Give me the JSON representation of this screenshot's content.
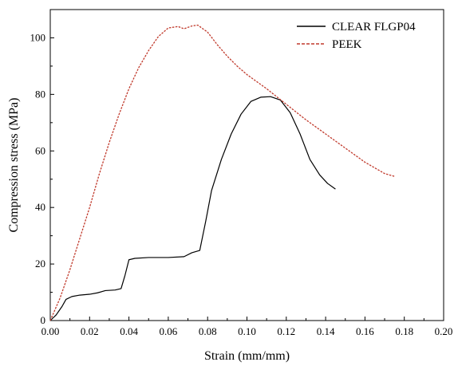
{
  "chart_data": {
    "type": "line",
    "title": "",
    "xlabel": "Strain (mm/mm)",
    "ylabel": "Compression stress (MPa)",
    "xlim": [
      0.0,
      0.2
    ],
    "ylim": [
      0,
      110
    ],
    "x_ticks": [
      "0.00",
      "0.02",
      "0.04",
      "0.06",
      "0.08",
      "0.10",
      "0.12",
      "0.14",
      "0.16",
      "0.18",
      "0.20"
    ],
    "y_ticks": [
      "0",
      "20",
      "40",
      "60",
      "80",
      "100"
    ],
    "grid": false,
    "legend_position": "top-right",
    "series": [
      {
        "name": "CLEAR FLGP04",
        "color": "#000000",
        "style": "solid",
        "points": [
          [
            0.0,
            0.0
          ],
          [
            0.003,
            2.0
          ],
          [
            0.006,
            5.0
          ],
          [
            0.008,
            7.5
          ],
          [
            0.011,
            8.5
          ],
          [
            0.015,
            9.0
          ],
          [
            0.02,
            9.3
          ],
          [
            0.024,
            9.8
          ],
          [
            0.028,
            10.6
          ],
          [
            0.033,
            10.8
          ],
          [
            0.036,
            11.3
          ],
          [
            0.038,
            16.0
          ],
          [
            0.04,
            21.5
          ],
          [
            0.043,
            22.0
          ],
          [
            0.05,
            22.3
          ],
          [
            0.06,
            22.3
          ],
          [
            0.068,
            22.6
          ],
          [
            0.072,
            24.0
          ],
          [
            0.076,
            24.8
          ],
          [
            0.079,
            35.0
          ],
          [
            0.082,
            46.0
          ],
          [
            0.087,
            57.0
          ],
          [
            0.092,
            66.0
          ],
          [
            0.097,
            73.0
          ],
          [
            0.102,
            77.5
          ],
          [
            0.107,
            79.0
          ],
          [
            0.112,
            79.2
          ],
          [
            0.117,
            78.0
          ],
          [
            0.122,
            73.5
          ],
          [
            0.127,
            66.0
          ],
          [
            0.132,
            57.0
          ],
          [
            0.137,
            51.5
          ],
          [
            0.141,
            48.5
          ],
          [
            0.145,
            46.5
          ]
        ]
      },
      {
        "name": "PEEK",
        "color": "#c0392b",
        "style": "dashed",
        "points": [
          [
            0.0,
            0.0
          ],
          [
            0.005,
            8.0
          ],
          [
            0.01,
            18.0
          ],
          [
            0.015,
            29.0
          ],
          [
            0.02,
            40.0
          ],
          [
            0.025,
            52.0
          ],
          [
            0.03,
            63.0
          ],
          [
            0.035,
            73.0
          ],
          [
            0.04,
            82.0
          ],
          [
            0.045,
            89.5
          ],
          [
            0.05,
            95.5
          ],
          [
            0.055,
            100.5
          ],
          [
            0.06,
            103.5
          ],
          [
            0.065,
            104.0
          ],
          [
            0.068,
            103.2
          ],
          [
            0.072,
            104.2
          ],
          [
            0.075,
            104.5
          ],
          [
            0.08,
            102.0
          ],
          [
            0.085,
            97.5
          ],
          [
            0.09,
            93.5
          ],
          [
            0.095,
            90.0
          ],
          [
            0.1,
            87.0
          ],
          [
            0.11,
            82.0
          ],
          [
            0.12,
            76.5
          ],
          [
            0.13,
            71.0
          ],
          [
            0.14,
            66.0
          ],
          [
            0.15,
            61.0
          ],
          [
            0.16,
            56.0
          ],
          [
            0.17,
            52.0
          ],
          [
            0.175,
            51.0
          ]
        ]
      }
    ]
  }
}
